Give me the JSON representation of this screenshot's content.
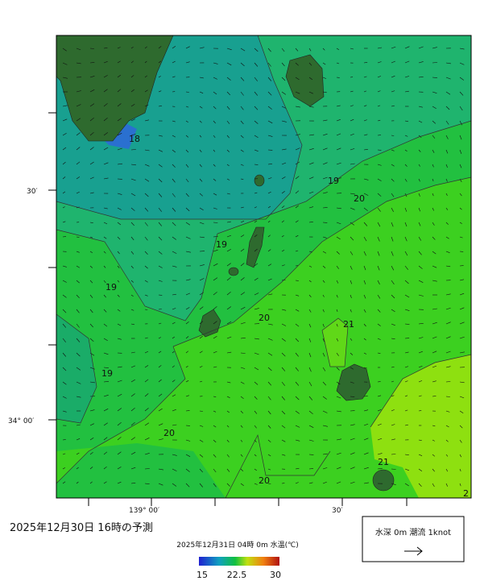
{
  "map": {
    "contour_labels": [
      "18",
      "19",
      "20",
      "19",
      "19",
      "20",
      "21",
      "19",
      "20",
      "20",
      "21",
      "2"
    ],
    "lat_labels": [
      "30′",
      "34° 00′"
    ],
    "lon_labels": [
      "139° 00′",
      "30′"
    ],
    "title": "2025年12月30日  16時の予測",
    "subtitle": "2025年12月31日 04時 0m 水温(℃)",
    "colorbar_labels": [
      "15",
      "22.5",
      "30"
    ],
    "legend": "水深 0m 潮流 1knot"
  }
}
